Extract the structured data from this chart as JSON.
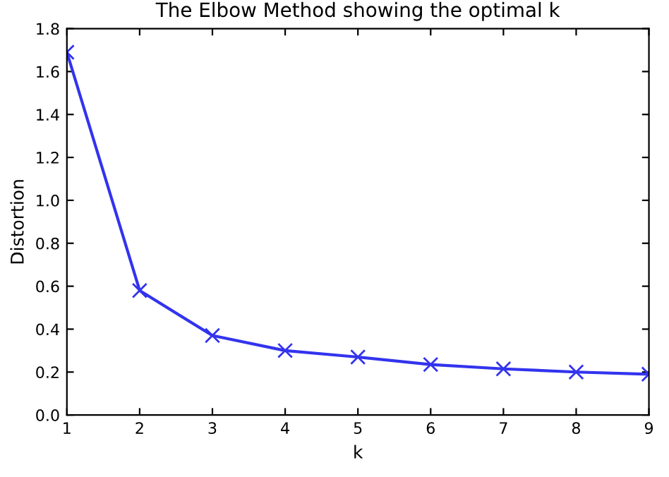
{
  "chart_data": {
    "type": "line",
    "title": "The Elbow Method showing the optimal k",
    "xlabel": "k",
    "ylabel": "Distortion",
    "x": [
      1,
      2,
      3,
      4,
      5,
      6,
      7,
      8,
      9
    ],
    "series": [
      {
        "color": "#3333ee",
        "values": [
          1.69,
          0.58,
          0.37,
          0.3,
          0.27,
          0.235,
          0.215,
          0.2,
          0.19
        ]
      }
    ],
    "xlim": [
      1,
      9
    ],
    "xticks": [
      1,
      2,
      3,
      4,
      5,
      6,
      7,
      8,
      9
    ],
    "ylim": [
      0,
      1.8
    ],
    "yticks": [
      {
        "value": 0,
        "label": "0.0"
      },
      0.2,
      0.4,
      0.6,
      0.8,
      {
        "value": 1,
        "label": "1.0"
      },
      1.2,
      1.4,
      1.6,
      1.8
    ],
    "marker": "cross",
    "line_style": "solid",
    "grid": false
  }
}
